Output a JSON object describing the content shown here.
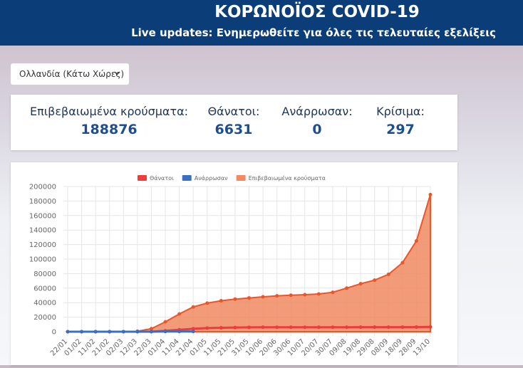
{
  "header": {
    "title": "ΚΟΡΩΝΟΪΟΣ COVID-19",
    "subtitle": "Live updates: Ενημερωθείτε για όλες τις τελευταίες εξελίξεις"
  },
  "dropdown": {
    "label": "Ολλανδία (Κάτω Χώρες)"
  },
  "stats": [
    {
      "label": "Επιβεβαιωμένα κρούσματα:",
      "value": 188876
    },
    {
      "label": "Θάνατοι:",
      "value": 6631
    },
    {
      "label": "Ανάρρωσαν:",
      "value": 0
    },
    {
      "label": "Κρίσιμα:",
      "value": 297
    }
  ],
  "chart_data": {
    "type": "line",
    "categories": [
      "22/01",
      "01/02",
      "11/02",
      "21/02",
      "02/03",
      "12/03",
      "22/03",
      "01/04",
      "11/04",
      "21/04",
      "01/05",
      "11/05",
      "21/05",
      "31/05",
      "10/06",
      "20/06",
      "30/06",
      "10/07",
      "20/07",
      "30/07",
      "09/08",
      "19/08",
      "29/08",
      "08/09",
      "18/09",
      "28/09",
      "13/10"
    ],
    "series": [
      {
        "name": "Θάνατοι",
        "color": "#ee3b3b",
        "values": [
          0,
          0,
          0,
          0,
          0,
          5,
          180,
          1170,
          2650,
          4050,
          5000,
          5450,
          5800,
          5950,
          6100,
          6100,
          6110,
          6150,
          6150,
          6150,
          6170,
          6200,
          6220,
          6250,
          6300,
          6400,
          6631
        ]
      },
      {
        "name": "Ανάρρωσαν",
        "color": "#3a6fc0",
        "values": [
          0,
          0,
          0,
          0,
          0,
          2,
          2,
          250,
          250,
          250,
          null,
          null,
          null,
          null,
          null,
          null,
          null,
          null,
          null,
          null,
          null,
          null,
          null,
          null,
          null,
          null,
          null
        ]
      },
      {
        "name": "Επιβεβαιωμένα κρούσματα",
        "color": "#f08a62",
        "values": [
          0,
          0,
          0,
          0,
          18,
          614,
          4200,
          13600,
          24400,
          34100,
          39300,
          42600,
          44900,
          46500,
          48000,
          49400,
          50300,
          51000,
          52000,
          54300,
          60000,
          66000,
          71000,
          79000,
          95000,
          125000,
          188876
        ]
      }
    ],
    "ylim": [
      0,
      200000
    ],
    "yticks": [
      0,
      20000,
      40000,
      60000,
      80000,
      100000,
      120000,
      140000,
      160000,
      180000,
      200000
    ],
    "grid": true
  }
}
